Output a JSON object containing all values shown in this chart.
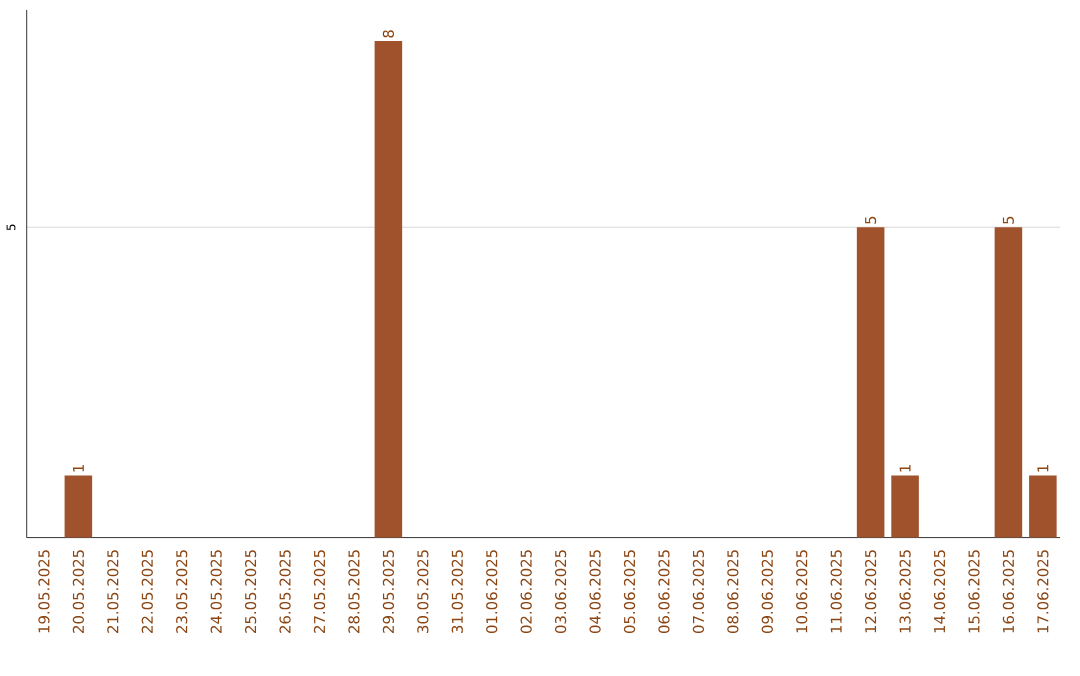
{
  "chart_data": {
    "type": "bar",
    "categories": [
      "19.05.2025",
      "20.05.2025",
      "21.05.2025",
      "22.05.2025",
      "23.05.2025",
      "24.05.2025",
      "25.05.2025",
      "26.05.2025",
      "27.05.2025",
      "28.05.2025",
      "29.05.2025",
      "30.05.2025",
      "31.05.2025",
      "01.06.2025",
      "02.06.2025",
      "03.06.2025",
      "04.06.2025",
      "05.06.2025",
      "06.06.2025",
      "07.06.2025",
      "08.06.2025",
      "09.06.2025",
      "10.06.2025",
      "11.06.2025",
      "12.06.2025",
      "13.06.2025",
      "14.06.2025",
      "15.06.2025",
      "16.06.2025",
      "17.06.2025"
    ],
    "values": [
      0,
      1,
      0,
      0,
      0,
      0,
      0,
      0,
      0,
      0,
      8,
      0,
      0,
      0,
      0,
      0,
      0,
      0,
      0,
      0,
      0,
      0,
      0,
      0,
      5,
      1,
      0,
      0,
      5,
      1
    ],
    "value_labels": [
      null,
      "1",
      null,
      null,
      null,
      null,
      null,
      null,
      null,
      null,
      "8",
      null,
      null,
      null,
      null,
      null,
      null,
      null,
      null,
      null,
      null,
      null,
      null,
      null,
      "5",
      "1",
      null,
      null,
      "5",
      "1"
    ],
    "color": "#a0522d",
    "ylim": [
      0,
      8.5
    ],
    "yticks": [
      5
    ],
    "grid": "y"
  }
}
